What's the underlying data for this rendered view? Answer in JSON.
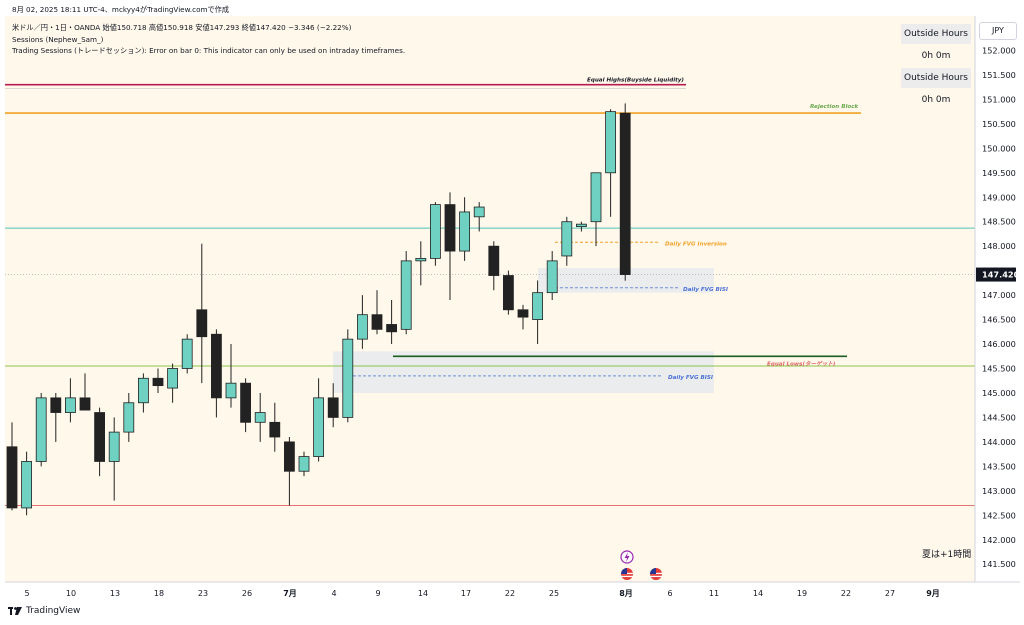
{
  "header": {
    "timestamp_line": "8月 02, 2025 18:11 UTC-4、mckyy4がTradingView.comで作成",
    "symbol_line": "米ドル／円・1日・OANDA 始値150.718 高値150.918 安値147.293 終値147.420 −3.346 (−2.22%)",
    "indicator1": "Sessions (Nephew_Sam_)",
    "indicator2": "Trading Sessions (トレードセッション): Error on bar 0: This indicator can only be used on intraday timeframes."
  },
  "sessions": [
    {
      "label": "Outside Hours",
      "time": "0h 0m"
    },
    {
      "label": "Outside Hours",
      "time": "0h 0m"
    }
  ],
  "currency": "JPY",
  "summer_time_note": "夏は+1時間",
  "brand": "TradingView",
  "colors": {
    "bull": "#6ed1c2",
    "bear": "#222222",
    "background": "#fff8eb",
    "price_label": "#131722",
    "rejection": "#f2a024",
    "equal_highs": "#b71c50",
    "equal_lows_line": "#1b5e20",
    "teal_line": "#4fc3b7",
    "green_line": "#8bc34a",
    "red_line": "#e57373"
  },
  "chart_data": {
    "type": "candlestick",
    "symbol": "米ドル／円",
    "timeframe": "1日",
    "y_axis": {
      "ylim": [
        141.3,
        152.5
      ],
      "tick_labels": [
        "152.000",
        "151.500",
        "151.000",
        "150.500",
        "150.000",
        "149.500",
        "149.000",
        "148.500",
        "148.000",
        "147.500",
        "147.000",
        "146.500",
        "146.000",
        "145.500",
        "145.000",
        "144.500",
        "144.000",
        "143.500",
        "143.000",
        "142.500",
        "142.000",
        "141.500"
      ]
    },
    "x_axis": {
      "tick_labels": [
        "5",
        "10",
        "13",
        "18",
        "23",
        "26",
        "7月",
        "4",
        "9",
        "14",
        "17",
        "22",
        "25",
        "8月",
        "6",
        "11",
        "14",
        "19",
        "22",
        "27",
        "9月"
      ]
    },
    "last_price": "147.420",
    "candles": [
      {
        "o": 143.9,
        "h": 144.4,
        "l": 142.6,
        "c": 142.65
      },
      {
        "o": 142.65,
        "h": 143.8,
        "l": 142.5,
        "c": 143.6
      },
      {
        "o": 143.6,
        "h": 145.0,
        "l": 143.5,
        "c": 144.9
      },
      {
        "o": 144.9,
        "h": 145.0,
        "l": 144.0,
        "c": 144.6
      },
      {
        "o": 144.6,
        "h": 145.3,
        "l": 144.4,
        "c": 144.9
      },
      {
        "o": 144.9,
        "h": 145.4,
        "l": 144.7,
        "c": 144.65
      },
      {
        "o": 144.6,
        "h": 144.7,
        "l": 143.3,
        "c": 143.6
      },
      {
        "o": 143.6,
        "h": 144.5,
        "l": 142.8,
        "c": 144.2
      },
      {
        "o": 144.2,
        "h": 145.0,
        "l": 144.0,
        "c": 144.8
      },
      {
        "o": 144.8,
        "h": 145.4,
        "l": 144.6,
        "c": 145.3
      },
      {
        "o": 145.3,
        "h": 145.5,
        "l": 145.0,
        "c": 145.15
      },
      {
        "o": 145.1,
        "h": 145.6,
        "l": 144.8,
        "c": 145.5
      },
      {
        "o": 145.5,
        "h": 146.2,
        "l": 145.4,
        "c": 146.1
      },
      {
        "o": 146.7,
        "h": 148.05,
        "l": 145.2,
        "c": 146.15
      },
      {
        "o": 146.2,
        "h": 146.3,
        "l": 144.5,
        "c": 144.9
      },
      {
        "o": 144.9,
        "h": 146.0,
        "l": 144.7,
        "c": 145.2
      },
      {
        "o": 145.2,
        "h": 145.3,
        "l": 144.2,
        "c": 144.4
      },
      {
        "o": 144.4,
        "h": 145.0,
        "l": 144.0,
        "c": 144.6
      },
      {
        "o": 144.4,
        "h": 144.8,
        "l": 143.8,
        "c": 144.1
      },
      {
        "o": 144.0,
        "h": 144.1,
        "l": 142.7,
        "c": 143.4
      },
      {
        "o": 143.4,
        "h": 143.8,
        "l": 143.3,
        "c": 143.7
      },
      {
        "o": 143.7,
        "h": 145.3,
        "l": 143.6,
        "c": 144.9
      },
      {
        "o": 144.9,
        "h": 145.2,
        "l": 144.3,
        "c": 144.5
      },
      {
        "o": 144.5,
        "h": 146.3,
        "l": 144.4,
        "c": 146.1
      },
      {
        "o": 146.1,
        "h": 147.0,
        "l": 145.9,
        "c": 146.6
      },
      {
        "o": 146.6,
        "h": 147.1,
        "l": 146.2,
        "c": 146.3
      },
      {
        "o": 146.4,
        "h": 146.9,
        "l": 146.0,
        "c": 146.25
      },
      {
        "o": 146.3,
        "h": 147.9,
        "l": 146.2,
        "c": 147.7
      },
      {
        "o": 147.7,
        "h": 148.1,
        "l": 147.2,
        "c": 147.75
      },
      {
        "o": 147.75,
        "h": 148.9,
        "l": 147.6,
        "c": 148.85
      },
      {
        "o": 148.85,
        "h": 149.1,
        "l": 146.9,
        "c": 147.9
      },
      {
        "o": 147.9,
        "h": 149.0,
        "l": 147.7,
        "c": 148.7
      },
      {
        "o": 148.6,
        "h": 148.9,
        "l": 148.3,
        "c": 148.8
      },
      {
        "o": 148.0,
        "h": 148.1,
        "l": 147.1,
        "c": 147.4
      },
      {
        "o": 147.4,
        "h": 147.5,
        "l": 146.6,
        "c": 146.7
      },
      {
        "o": 146.7,
        "h": 146.8,
        "l": 146.3,
        "c": 146.55
      },
      {
        "o": 146.5,
        "h": 147.3,
        "l": 146.0,
        "c": 147.05
      },
      {
        "o": 147.05,
        "h": 147.9,
        "l": 146.9,
        "c": 147.7
      },
      {
        "o": 147.8,
        "h": 148.6,
        "l": 147.6,
        "c": 148.5
      },
      {
        "o": 148.4,
        "h": 148.5,
        "l": 148.3,
        "c": 148.45
      },
      {
        "o": 148.5,
        "h": 149.5,
        "l": 148.0,
        "c": 149.5
      },
      {
        "o": 149.5,
        "h": 150.8,
        "l": 148.6,
        "c": 150.75
      },
      {
        "o": 150.718,
        "h": 150.918,
        "l": 147.293,
        "c": 147.42
      }
    ],
    "lines": [
      {
        "name": "Equal Highs(Buyside Liquidity)",
        "y": 151.3,
        "style": "solid",
        "color": "#b71c50"
      },
      {
        "name": "Rejection Block",
        "y": 150.72,
        "style": "solid",
        "color": "#f2a024"
      },
      {
        "name": "",
        "y": 148.37,
        "style": "solid",
        "color": "#4fc3b7"
      },
      {
        "name": "Daily FVG Inversion",
        "y": 148.08,
        "style": "dashed",
        "color": "#f2a024"
      },
      {
        "name": "Daily FVG BISI",
        "y": 147.15,
        "style": "dashed",
        "color": "#6f8fd6"
      },
      {
        "name": "Equal Lows(ターゲット)",
        "y": 145.75,
        "style": "solid",
        "color": "#1b5e20"
      },
      {
        "name": "",
        "y": 145.55,
        "style": "solid",
        "color": "#8bc34a"
      },
      {
        "name": "Daily FVG BISI",
        "y": 145.35,
        "style": "dashed",
        "color": "#6f8fd6"
      },
      {
        "name": "",
        "y": 142.7,
        "style": "solid",
        "color": "#e57373"
      }
    ],
    "zones": [
      {
        "y_top": 147.55,
        "y_bottom": 147.05
      },
      {
        "y_top": 145.85,
        "y_bottom": 145.0
      }
    ],
    "annotations": [
      {
        "text": "Equal Highs(Buyside Liquidity)",
        "color": "#131722"
      },
      {
        "text": "Rejection Block",
        "color": "#6aa84f"
      },
      {
        "text": "Daily FVG Inversion",
        "color": "#f2a024"
      },
      {
        "text": "Daily FVG BISI",
        "color": "#4a6fd6"
      },
      {
        "text": "Equal Lows(ターゲット)",
        "color": "#e06666"
      },
      {
        "text": "Daily FVG BISI",
        "color": "#4a6fd6"
      }
    ],
    "grid": false
  }
}
